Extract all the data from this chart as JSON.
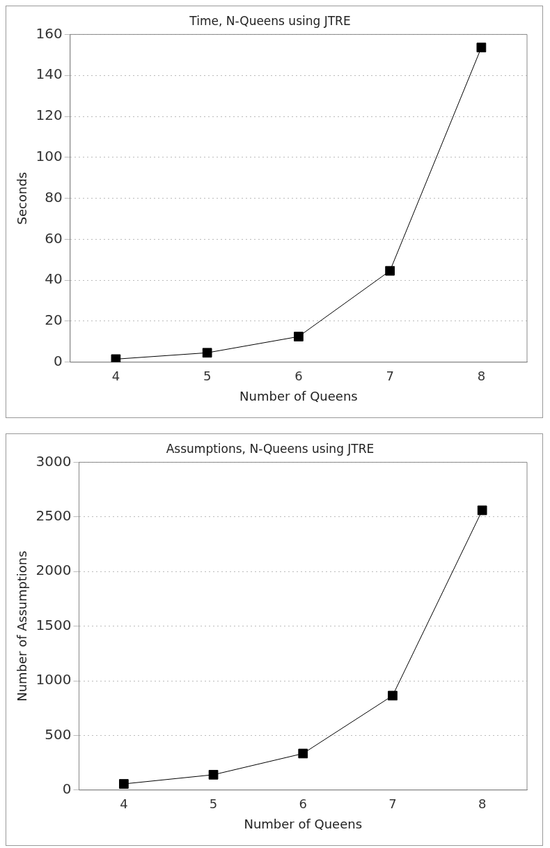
{
  "chart_data": [
    {
      "type": "line",
      "title": "Time, N-Queens using JTRE",
      "xlabel": "Number of Queens",
      "ylabel": "Seconds",
      "categories": [
        "4",
        "5",
        "6",
        "7",
        "8"
      ],
      "series": [
        {
          "color": "#000000",
          "values": [
            1.5,
            4.6,
            12.5,
            44.6,
            153.6
          ]
        }
      ],
      "ylim": [
        0,
        160
      ],
      "yticks": [
        0,
        20,
        40,
        60,
        80,
        100,
        120,
        140,
        160
      ],
      "grid": "y",
      "legend": false,
      "marker": "square",
      "line_style": "solid"
    },
    {
      "type": "line",
      "title": "Assumptions, N-Queens using JTRE",
      "xlabel": "Number of Queens",
      "ylabel": "Number of Assumptions",
      "categories": [
        "4",
        "5",
        "6",
        "7",
        "8"
      ],
      "series": [
        {
          "color": "#000000",
          "values": [
            56,
            140,
            334,
            864,
            2560
          ]
        }
      ],
      "ylim": [
        0,
        3000
      ],
      "yticks": [
        0,
        500,
        1000,
        1500,
        2000,
        2500,
        3000
      ],
      "grid": "y",
      "legend": false,
      "marker": "square",
      "line_style": "solid"
    }
  ]
}
